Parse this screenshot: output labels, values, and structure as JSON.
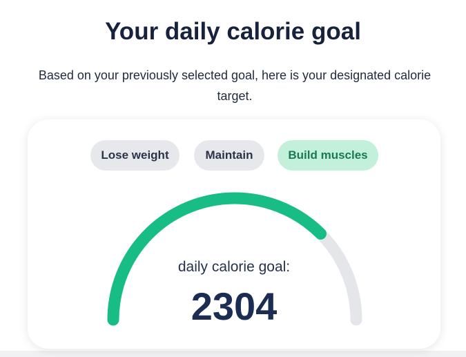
{
  "title": "Your daily calorie goal",
  "subtitle": "Based on your previously selected goal, here is your designated calorie target.",
  "goals": [
    {
      "label": "Lose weight",
      "selected": false
    },
    {
      "label": "Maintain",
      "selected": false
    },
    {
      "label": "Build muscles",
      "selected": true
    }
  ],
  "gauge": {
    "label": "daily calorie goal:",
    "value": "2304",
    "progress": 0.75,
    "fill_color": "#17bd85",
    "track_color": "#e5e6ea"
  }
}
